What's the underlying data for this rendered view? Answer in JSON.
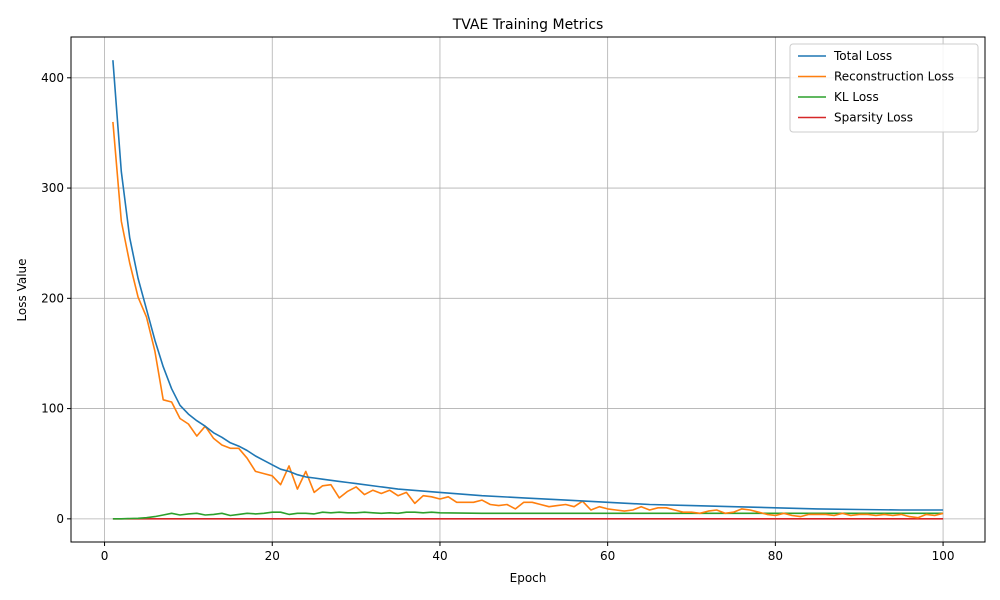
{
  "chart_data": {
    "type": "line",
    "title": "TVAE Training Metrics",
    "xlabel": "Epoch",
    "ylabel": "Loss Value",
    "xlim": [
      -4,
      105
    ],
    "ylim": [
      -21,
      437
    ],
    "xticks": [
      0,
      20,
      40,
      60,
      80,
      100
    ],
    "yticks": [
      0,
      100,
      200,
      300,
      400
    ],
    "grid": true,
    "legend_position": "top-right",
    "series": [
      {
        "name": "Total Loss",
        "color": "#1f77b4",
        "x": [
          1,
          2,
          3,
          4,
          5,
          6,
          7,
          8,
          9,
          10,
          11,
          12,
          13,
          14,
          15,
          16,
          17,
          18,
          19,
          20,
          21,
          22,
          23,
          24,
          25,
          26,
          27,
          28,
          29,
          30,
          35,
          40,
          45,
          50,
          55,
          60,
          65,
          70,
          75,
          80,
          85,
          90,
          95,
          100
        ],
        "y": [
          416,
          315,
          255,
          218,
          190,
          162,
          138,
          118,
          103,
          95,
          89,
          84,
          78,
          74,
          69,
          66,
          62,
          57,
          53,
          49,
          45,
          43,
          40,
          38,
          37,
          36,
          35,
          34,
          33,
          32,
          27,
          24,
          21,
          19,
          17,
          15,
          13,
          12,
          11,
          10,
          9,
          8.5,
          8,
          8
        ]
      },
      {
        "name": "Reconstruction Loss",
        "color": "#ff7f0e",
        "x": [
          1,
          2,
          3,
          4,
          5,
          6,
          7,
          8,
          9,
          10,
          11,
          12,
          13,
          14,
          15,
          16,
          17,
          18,
          19,
          20,
          21,
          22,
          23,
          24,
          25,
          26,
          27,
          28,
          29,
          30,
          31,
          32,
          33,
          34,
          35,
          36,
          37,
          38,
          39,
          40,
          41,
          42,
          43,
          44,
          45,
          46,
          47,
          48,
          49,
          50,
          51,
          52,
          53,
          54,
          55,
          56,
          57,
          58,
          59,
          60,
          61,
          62,
          63,
          64,
          65,
          66,
          67,
          68,
          69,
          70,
          71,
          72,
          73,
          74,
          75,
          76,
          77,
          78,
          79,
          80,
          81,
          82,
          83,
          84,
          85,
          86,
          87,
          88,
          89,
          90,
          91,
          92,
          93,
          94,
          95,
          96,
          97,
          98,
          99,
          100
        ],
        "y": [
          360,
          270,
          232,
          201,
          183,
          152,
          108,
          106,
          91,
          86,
          75,
          84,
          73,
          67,
          64,
          64,
          55,
          43,
          41,
          39,
          31,
          48,
          27,
          43,
          24,
          30,
          31,
          19,
          25,
          29,
          22,
          26,
          23,
          26,
          21,
          24,
          14,
          21,
          20,
          18,
          20,
          15,
          15,
          15,
          17,
          13,
          12,
          13,
          9,
          15,
          15,
          13,
          11,
          12,
          13,
          11,
          16,
          8,
          11,
          9,
          8,
          7,
          8,
          11,
          8,
          10,
          10,
          8,
          6,
          6,
          5,
          7,
          8,
          5,
          6,
          9,
          8,
          6,
          4,
          3,
          5,
          3,
          2,
          4,
          4,
          4,
          3,
          5,
          3,
          4,
          4,
          3,
          4,
          3,
          4,
          2,
          1,
          4,
          3,
          5
        ]
      },
      {
        "name": "KL Loss",
        "color": "#2ca02c",
        "x": [
          1,
          2,
          3,
          4,
          5,
          6,
          7,
          8,
          9,
          10,
          11,
          12,
          13,
          14,
          15,
          16,
          17,
          18,
          19,
          20,
          21,
          22,
          23,
          24,
          25,
          26,
          27,
          28,
          29,
          30,
          31,
          32,
          33,
          34,
          35,
          36,
          37,
          38,
          39,
          40,
          45,
          50,
          55,
          60,
          65,
          70,
          75,
          80,
          85,
          90,
          95,
          100
        ],
        "y": [
          0,
          0,
          0.3,
          0.5,
          1,
          2,
          3.5,
          5,
          3.5,
          4.5,
          5,
          3.5,
          4,
          5,
          3,
          4,
          5,
          4.5,
          5,
          6,
          6,
          4,
          5,
          5,
          4.5,
          6,
          5.5,
          6,
          5.5,
          5.5,
          6,
          5.5,
          5,
          5.5,
          5,
          6,
          6,
          5.5,
          6,
          5.5,
          5,
          5,
          5,
          5,
          5,
          5,
          5,
          5,
          5,
          5,
          5,
          5
        ]
      },
      {
        "name": "Sparsity Loss",
        "color": "#d62728",
        "x": [
          1,
          100
        ],
        "y": [
          0,
          0
        ]
      }
    ]
  }
}
